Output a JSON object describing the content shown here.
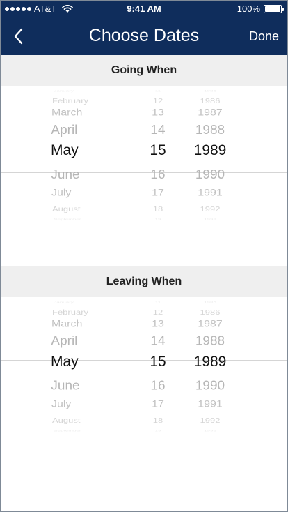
{
  "status_bar": {
    "carrier": "AT&T",
    "time": "9:41 AM",
    "battery": "100%",
    "battery_level": 1.0
  },
  "nav": {
    "title": "Choose Dates",
    "done_label": "Done",
    "back_icon": "chevron-left-icon"
  },
  "pickers": [
    {
      "header": "Going When",
      "months": [
        "January",
        "February",
        "March",
        "April",
        "May",
        "June",
        "July",
        "August",
        "September"
      ],
      "days": [
        "11",
        "12",
        "13",
        "14",
        "15",
        "16",
        "17",
        "18",
        "19"
      ],
      "years": [
        "1985",
        "1986",
        "1987",
        "1988",
        "1989",
        "1990",
        "1991",
        "1992",
        "1993"
      ],
      "selected": {
        "month": "May",
        "day": "15",
        "year": "1989"
      }
    },
    {
      "header": "Leaving When",
      "months": [
        "January",
        "February",
        "March",
        "April",
        "May",
        "June",
        "July",
        "August",
        "September"
      ],
      "days": [
        "11",
        "12",
        "13",
        "14",
        "15",
        "16",
        "17",
        "18",
        "19"
      ],
      "years": [
        "1985",
        "1986",
        "1987",
        "1988",
        "1989",
        "1990",
        "1991",
        "1992",
        "1993"
      ],
      "selected": {
        "month": "May",
        "day": "15",
        "year": "1989"
      }
    }
  ],
  "colors": {
    "nav_background": "#0f2d5c",
    "header_background": "#efefef",
    "selected_text": "#111111",
    "faded_text": "#b3b3b3"
  }
}
